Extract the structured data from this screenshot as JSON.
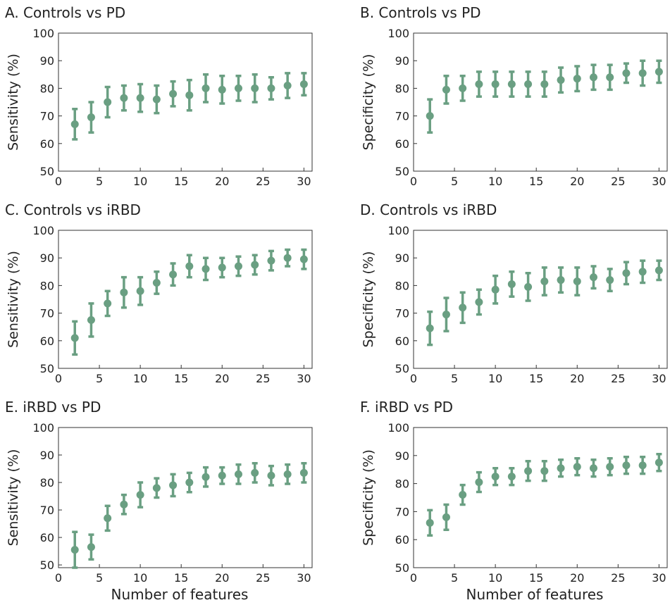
{
  "chart_data": [
    {
      "type": "errorbar",
      "title": "A. Controls vs PD",
      "ylabel": "Sensitivity (%)",
      "color": "#6a9f82",
      "x": [
        2,
        4,
        6,
        8,
        10,
        12,
        14,
        16,
        18,
        20,
        22,
        24,
        26,
        28,
        30
      ],
      "values": [
        67,
        69.5,
        75,
        76.5,
        76.5,
        76,
        78,
        77.5,
        80,
        79.5,
        80,
        80,
        80,
        81,
        81.5
      ],
      "errors": [
        5.5,
        5.5,
        5.5,
        4.5,
        5,
        5,
        4.5,
        5.5,
        5,
        5,
        4.5,
        5,
        4,
        4.5,
        4
      ],
      "xlim": [
        0,
        31
      ],
      "ylim": [
        50,
        100
      ],
      "xticks": [
        0,
        5,
        10,
        15,
        20,
        25,
        30
      ],
      "yticks": [
        50,
        60,
        70,
        80,
        90,
        100
      ]
    },
    {
      "type": "errorbar",
      "title": "B. Controls vs PD",
      "ylabel": "Specificity (%)",
      "color": "#6a9f82",
      "x": [
        2,
        4,
        6,
        8,
        10,
        12,
        14,
        16,
        18,
        20,
        22,
        24,
        26,
        28,
        30
      ],
      "values": [
        70,
        79.5,
        80,
        81.5,
        81.5,
        81.5,
        81.5,
        81.5,
        83,
        83.5,
        84,
        84,
        85.5,
        85.5,
        86
      ],
      "errors": [
        6,
        5,
        4.5,
        4.5,
        4.5,
        4.5,
        4.5,
        4.5,
        4.5,
        4.5,
        4.5,
        4.5,
        3.5,
        4.5,
        4
      ],
      "xlim": [
        0,
        31
      ],
      "ylim": [
        50,
        100
      ],
      "xticks": [
        0,
        5,
        10,
        15,
        20,
        25,
        30
      ],
      "yticks": [
        50,
        60,
        70,
        80,
        90,
        100
      ]
    },
    {
      "type": "errorbar",
      "title": "C. Controls vs iRBD",
      "ylabel": "Sensitivity (%)",
      "color": "#6a9f82",
      "x": [
        2,
        4,
        6,
        8,
        10,
        12,
        14,
        16,
        18,
        20,
        22,
        24,
        26,
        28,
        30
      ],
      "values": [
        61,
        67.5,
        73.5,
        77.5,
        78,
        81,
        84,
        87,
        86,
        86.5,
        87,
        87.5,
        89,
        90,
        89.5
      ],
      "errors": [
        6,
        6,
        4.5,
        5.5,
        5,
        4,
        4,
        4,
        4,
        3.5,
        3.5,
        3.5,
        3.5,
        3,
        3.5
      ],
      "xlim": [
        0,
        31
      ],
      "ylim": [
        50,
        100
      ],
      "xticks": [
        0,
        5,
        10,
        15,
        20,
        25,
        30
      ],
      "yticks": [
        50,
        60,
        70,
        80,
        90,
        100
      ]
    },
    {
      "type": "errorbar",
      "title": "D. Controls vs iRBD",
      "ylabel": "Specificity (%)",
      "color": "#6a9f82",
      "x": [
        2,
        4,
        6,
        8,
        10,
        12,
        14,
        16,
        18,
        20,
        22,
        24,
        26,
        28,
        30
      ],
      "values": [
        64.5,
        69.5,
        72,
        74,
        78.5,
        80.5,
        79.5,
        81.5,
        82,
        81.5,
        83,
        82,
        84.5,
        85,
        85.5
      ],
      "errors": [
        6,
        6,
        5.5,
        4.5,
        5,
        4.5,
        5,
        5,
        4.5,
        5,
        4,
        4,
        4,
        4,
        3.5
      ],
      "xlim": [
        0,
        31
      ],
      "ylim": [
        50,
        100
      ],
      "xticks": [
        0,
        5,
        10,
        15,
        20,
        25,
        30
      ],
      "yticks": [
        50,
        60,
        70,
        80,
        90,
        100
      ]
    },
    {
      "type": "errorbar",
      "title": "E. iRBD vs PD",
      "ylabel": "Sensitivity (%)",
      "xlabel": "Number of features",
      "color": "#6a9f82",
      "x": [
        2,
        4,
        6,
        8,
        10,
        12,
        14,
        16,
        18,
        20,
        22,
        24,
        26,
        28,
        30
      ],
      "values": [
        55.5,
        56.5,
        67,
        72,
        75.5,
        78,
        79,
        80,
        82,
        82.5,
        83,
        83.5,
        82.5,
        83,
        83.5
      ],
      "errors": [
        6.5,
        4.5,
        4.5,
        3.5,
        4.5,
        3.5,
        4,
        3.5,
        3.5,
        3,
        3.5,
        3.5,
        3.5,
        3.5,
        3.5
      ],
      "xlim": [
        0,
        31
      ],
      "ylim": [
        49,
        100
      ],
      "xticks": [
        0,
        5,
        10,
        15,
        20,
        25,
        30
      ],
      "yticks": [
        50,
        60,
        70,
        80,
        90,
        100
      ]
    },
    {
      "type": "errorbar",
      "title": "F. iRBD vs PD",
      "ylabel": "Specificity (%)",
      "xlabel": "Number of features",
      "color": "#6a9f82",
      "x": [
        2,
        4,
        6,
        8,
        10,
        12,
        14,
        16,
        18,
        20,
        22,
        24,
        26,
        28,
        30
      ],
      "values": [
        66,
        68,
        76,
        80.5,
        82.5,
        82.5,
        84.5,
        84.5,
        85.5,
        86,
        85.5,
        86,
        86.5,
        86.5,
        87.5
      ],
      "errors": [
        4.5,
        4.5,
        3.5,
        3.5,
        3,
        3,
        3.5,
        3.5,
        3,
        3,
        3,
        3,
        3,
        3,
        3
      ],
      "xlim": [
        0,
        31
      ],
      "ylim": [
        50,
        100
      ],
      "xticks": [
        0,
        5,
        10,
        15,
        20,
        25,
        30
      ],
      "yticks": [
        50,
        60,
        70,
        80,
        90,
        100
      ]
    }
  ]
}
